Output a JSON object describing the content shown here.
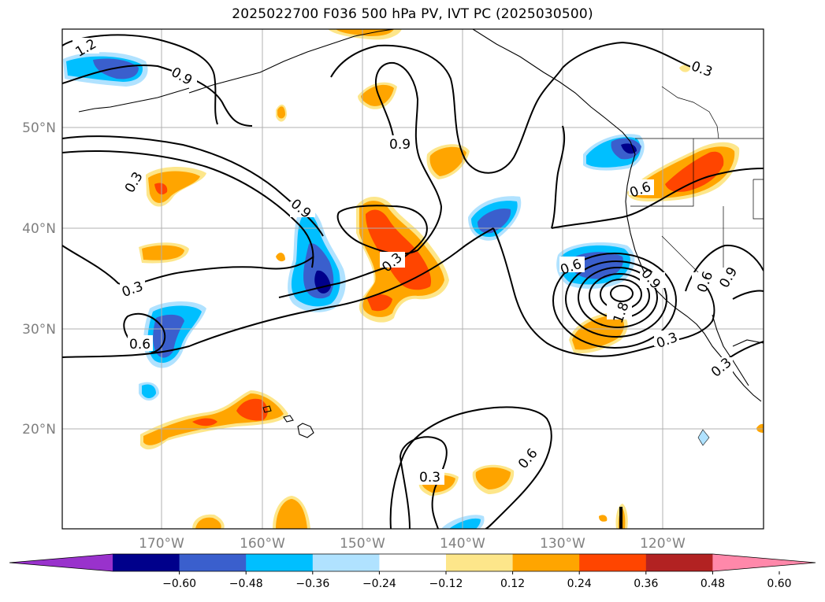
{
  "title": "2025022700 F036 500 hPa PV, IVT PC (2025030500)",
  "axes": {
    "lat_labels": [
      "50°N",
      "40°N",
      "30°N",
      "20°N"
    ],
    "lon_labels": [
      "170°W",
      "160°W",
      "150°W",
      "140°W",
      "130°W",
      "120°W"
    ]
  },
  "contour_labels": [
    "1.2",
    "0.9",
    "0.3",
    "0.9",
    "0.3",
    "0.6",
    "0.9",
    "0.3",
    "0.6",
    "0.6",
    "0.9",
    "0.6",
    "0.9",
    "1.8",
    "0.3",
    "0.3",
    "0.6",
    "0.3",
    "0.3"
  ],
  "colorbar": {
    "ticks": [
      "−0.60",
      "−0.48",
      "−0.36",
      "−0.24",
      "−0.12",
      "0.12",
      "0.24",
      "0.36",
      "0.48",
      "0.60"
    ],
    "colors": [
      "#9932cc",
      "#00008b",
      "#3a5fcd",
      "#00bfff",
      "#b0e2ff",
      "#ffffff",
      "#fde68a",
      "#ffa500",
      "#ff4500",
      "#b22222",
      "#ff88aa"
    ]
  }
}
